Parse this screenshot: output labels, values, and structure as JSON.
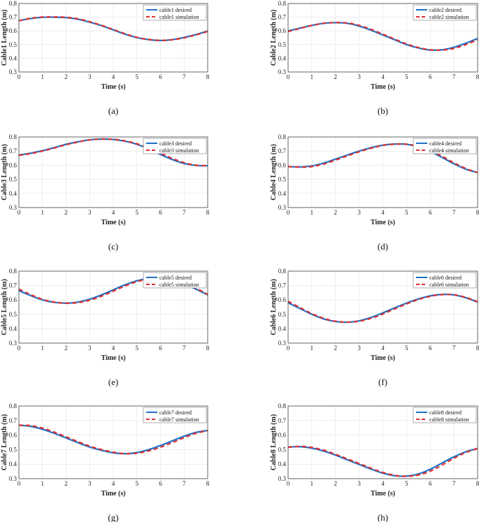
{
  "chart_data": [
    {
      "type": "line",
      "caption": "(a)",
      "xlabel": "Time (s)",
      "ylabel": "Cable1 Length (m)",
      "xlim": [
        0,
        8
      ],
      "ylim": [
        0.3,
        0.8
      ],
      "xticks": [
        "0",
        "1",
        "2",
        "3",
        "4",
        "5",
        "6",
        "7",
        "8"
      ],
      "yticks": [
        "0.3",
        "0.4",
        "0.5",
        "0.6",
        "0.7",
        "0.8"
      ],
      "grid": true,
      "legend": "top-right",
      "x": [
        0,
        0.5,
        1,
        1.5,
        2,
        2.5,
        3,
        3.5,
        4,
        4.5,
        5,
        5.5,
        6,
        6.5,
        7,
        7.5,
        8
      ],
      "series": [
        {
          "name": "cable1 desired",
          "values": [
            0.675,
            0.69,
            0.699,
            0.7,
            0.697,
            0.685,
            0.664,
            0.638,
            0.607,
            0.576,
            0.551,
            0.536,
            0.53,
            0.536,
            0.552,
            0.573,
            0.598
          ]
        },
        {
          "name": "cable1 simulation",
          "values": [
            0.674,
            0.692,
            0.701,
            0.702,
            0.699,
            0.688,
            0.667,
            0.641,
            0.61,
            0.579,
            0.553,
            0.538,
            0.531,
            0.535,
            0.549,
            0.57,
            0.596
          ]
        }
      ]
    },
    {
      "type": "line",
      "caption": "(b)",
      "xlabel": "Time (s)",
      "ylabel": "Cable2 Length (m)",
      "xlim": [
        0,
        8
      ],
      "ylim": [
        0.3,
        0.8
      ],
      "xticks": [
        "0",
        "1",
        "2",
        "3",
        "4",
        "5",
        "6",
        "7",
        "8"
      ],
      "yticks": [
        "0.3",
        "0.4",
        "0.5",
        "0.6",
        "0.7",
        "0.8"
      ],
      "grid": true,
      "legend": "top-right",
      "x": [
        0,
        0.5,
        1,
        1.5,
        2,
        2.5,
        3,
        3.5,
        4,
        4.5,
        5,
        5.5,
        6,
        6.5,
        7,
        7.5,
        8
      ],
      "series": [
        {
          "name": "cable2 desired",
          "values": [
            0.6,
            0.62,
            0.64,
            0.655,
            0.66,
            0.655,
            0.635,
            0.605,
            0.57,
            0.535,
            0.5,
            0.475,
            0.46,
            0.462,
            0.48,
            0.51,
            0.545
          ]
        },
        {
          "name": "cable2 simulation",
          "values": [
            0.595,
            0.618,
            0.64,
            0.656,
            0.661,
            0.658,
            0.64,
            0.611,
            0.576,
            0.54,
            0.505,
            0.478,
            0.462,
            0.46,
            0.472,
            0.5,
            0.535
          ]
        }
      ]
    },
    {
      "type": "line",
      "caption": "(c)",
      "xlabel": "Time (s)",
      "ylabel": "Cable3 Length (m)",
      "xlim": [
        0,
        8
      ],
      "ylim": [
        0.3,
        0.8
      ],
      "xticks": [
        "0",
        "1",
        "2",
        "3",
        "4",
        "5",
        "6",
        "7",
        "8"
      ],
      "yticks": [
        "0.3",
        "0.4",
        "0.5",
        "0.6",
        "0.7",
        "0.8"
      ],
      "grid": true,
      "legend": "top-right",
      "x": [
        0,
        0.5,
        1,
        1.5,
        2,
        2.5,
        3,
        3.5,
        4,
        4.5,
        5,
        5.5,
        6,
        6.5,
        7,
        7.5,
        8
      ],
      "series": [
        {
          "name": "cable3 desired",
          "values": [
            0.672,
            0.685,
            0.703,
            0.725,
            0.748,
            0.766,
            0.78,
            0.785,
            0.782,
            0.77,
            0.748,
            0.715,
            0.676,
            0.64,
            0.612,
            0.598,
            0.596
          ]
        },
        {
          "name": "cable3 simulation",
          "values": [
            0.67,
            0.682,
            0.7,
            0.722,
            0.745,
            0.764,
            0.779,
            0.785,
            0.783,
            0.772,
            0.752,
            0.722,
            0.685,
            0.648,
            0.618,
            0.6,
            0.597
          ]
        }
      ]
    },
    {
      "type": "line",
      "caption": "(d)",
      "xlabel": "Time (s)",
      "ylabel": "Cable4 Length (m)",
      "xlim": [
        0,
        8
      ],
      "ylim": [
        0.3,
        0.8
      ],
      "xticks": [
        "0",
        "1",
        "2",
        "3",
        "4",
        "5",
        "6",
        "7",
        "8"
      ],
      "yticks": [
        "0.3",
        "0.4",
        "0.5",
        "0.6",
        "0.7",
        "0.8"
      ],
      "grid": true,
      "legend": "top-right",
      "x": [
        0,
        0.5,
        1,
        1.5,
        2,
        2.5,
        3,
        3.5,
        4,
        4.5,
        5,
        5.5,
        6,
        6.5,
        7,
        7.5,
        8
      ],
      "series": [
        {
          "name": "cable4 desired",
          "values": [
            0.59,
            0.588,
            0.595,
            0.615,
            0.643,
            0.672,
            0.7,
            0.724,
            0.742,
            0.75,
            0.748,
            0.73,
            0.698,
            0.655,
            0.61,
            0.572,
            0.548
          ]
        },
        {
          "name": "cable4 simulation",
          "values": [
            0.591,
            0.586,
            0.59,
            0.608,
            0.636,
            0.666,
            0.695,
            0.72,
            0.74,
            0.749,
            0.749,
            0.735,
            0.705,
            0.663,
            0.617,
            0.577,
            0.548
          ]
        }
      ]
    },
    {
      "type": "line",
      "caption": "(e)",
      "xlabel": "Time (s)",
      "ylabel": "Cable5 Length (m)",
      "xlim": [
        0,
        8
      ],
      "ylim": [
        0.3,
        0.8
      ],
      "xticks": [
        "0",
        "1",
        "2",
        "3",
        "4",
        "5",
        "6",
        "7",
        "8"
      ],
      "yticks": [
        "0.3",
        "0.4",
        "0.5",
        "0.6",
        "0.7",
        "0.8"
      ],
      "grid": true,
      "legend": "top-right",
      "x": [
        0,
        0.5,
        1,
        1.5,
        2,
        2.5,
        3,
        3.5,
        4,
        4.5,
        5,
        5.5,
        6,
        6.5,
        7,
        7.5,
        8
      ],
      "series": [
        {
          "name": "cable5 desired",
          "values": [
            0.665,
            0.63,
            0.6,
            0.583,
            0.578,
            0.585,
            0.605,
            0.635,
            0.67,
            0.705,
            0.733,
            0.748,
            0.75,
            0.738,
            0.712,
            0.675,
            0.635
          ]
        },
        {
          "name": "cable5 simulation",
          "values": [
            0.675,
            0.637,
            0.604,
            0.585,
            0.577,
            0.581,
            0.598,
            0.626,
            0.661,
            0.697,
            0.727,
            0.745,
            0.751,
            0.744,
            0.72,
            0.682,
            0.638
          ]
        }
      ]
    },
    {
      "type": "line",
      "caption": "(f)",
      "xlabel": "Time (s)",
      "ylabel": "Cable6 Length (m)",
      "xlim": [
        0,
        8
      ],
      "ylim": [
        0.3,
        0.8
      ],
      "xticks": [
        "0",
        "1",
        "2",
        "3",
        "4",
        "5",
        "6",
        "7",
        "8"
      ],
      "yticks": [
        "0.3",
        "0.4",
        "0.5",
        "0.6",
        "0.7",
        "0.8"
      ],
      "grid": true,
      "legend": "top-right",
      "x": [
        0,
        0.5,
        1,
        1.5,
        2,
        2.5,
        3,
        3.5,
        4,
        4.5,
        5,
        5.5,
        6,
        6.5,
        7,
        7.5,
        8
      ],
      "series": [
        {
          "name": "cable6 desired",
          "values": [
            0.58,
            0.54,
            0.5,
            0.468,
            0.45,
            0.445,
            0.455,
            0.478,
            0.51,
            0.545,
            0.578,
            0.607,
            0.628,
            0.638,
            0.635,
            0.615,
            0.585
          ]
        },
        {
          "name": "cable6 simulation",
          "values": [
            0.59,
            0.547,
            0.505,
            0.472,
            0.452,
            0.446,
            0.452,
            0.472,
            0.502,
            0.538,
            0.572,
            0.603,
            0.625,
            0.637,
            0.636,
            0.618,
            0.587
          ]
        }
      ]
    },
    {
      "type": "line",
      "caption": "(g)",
      "xlabel": "Time (s)",
      "ylabel": "Cable7 Length (m)",
      "xlim": [
        0,
        8
      ],
      "ylim": [
        0.3,
        0.8
      ],
      "xticks": [
        "0",
        "1",
        "2",
        "3",
        "4",
        "5",
        "6",
        "7",
        "8"
      ],
      "yticks": [
        "0.3",
        "0.4",
        "0.5",
        "0.6",
        "0.7",
        "0.8"
      ],
      "grid": true,
      "legend": "top-right",
      "x": [
        0,
        0.5,
        1,
        1.5,
        2,
        2.5,
        3,
        3.5,
        4,
        4.5,
        5,
        5.5,
        6,
        6.5,
        7,
        7.5,
        8
      ],
      "series": [
        {
          "name": "cable7 desired",
          "values": [
            0.668,
            0.66,
            0.64,
            0.612,
            0.58,
            0.548,
            0.518,
            0.495,
            0.478,
            0.472,
            0.48,
            0.5,
            0.528,
            0.56,
            0.592,
            0.618,
            0.632
          ]
        },
        {
          "name": "cable7 simulation",
          "values": [
            0.668,
            0.665,
            0.648,
            0.62,
            0.588,
            0.555,
            0.524,
            0.5,
            0.482,
            0.472,
            0.475,
            0.491,
            0.517,
            0.548,
            0.582,
            0.612,
            0.63
          ]
        }
      ]
    },
    {
      "type": "line",
      "caption": "(h)",
      "xlabel": "Time (s)",
      "ylabel": "Cable8 Length (m)",
      "xlim": [
        0,
        8
      ],
      "ylim": [
        0.3,
        0.8
      ],
      "xticks": [
        "0",
        "1",
        "2",
        "3",
        "4",
        "5",
        "6",
        "7",
        "8"
      ],
      "yticks": [
        "0.3",
        "0.4",
        "0.5",
        "0.6",
        "0.7",
        "0.8"
      ],
      "grid": true,
      "legend": "top-right",
      "x": [
        0,
        0.5,
        1,
        1.5,
        2,
        2.5,
        3,
        3.5,
        4,
        4.5,
        5,
        5.5,
        6,
        6.5,
        7,
        7.5,
        8
      ],
      "series": [
        {
          "name": "cable8 desired",
          "values": [
            0.518,
            0.52,
            0.51,
            0.49,
            0.462,
            0.43,
            0.398,
            0.366,
            0.338,
            0.32,
            0.318,
            0.332,
            0.365,
            0.408,
            0.45,
            0.485,
            0.508
          ]
        },
        {
          "name": "cable8 simulation",
          "values": [
            0.516,
            0.522,
            0.515,
            0.496,
            0.468,
            0.436,
            0.404,
            0.372,
            0.343,
            0.323,
            0.316,
            0.325,
            0.352,
            0.394,
            0.44,
            0.48,
            0.507
          ]
        }
      ]
    }
  ],
  "style": {
    "desired_color": "#1f6fc6",
    "simulation_color": "#e03030",
    "grid_color": "#e2e2e2",
    "frame_color": "#444444"
  }
}
